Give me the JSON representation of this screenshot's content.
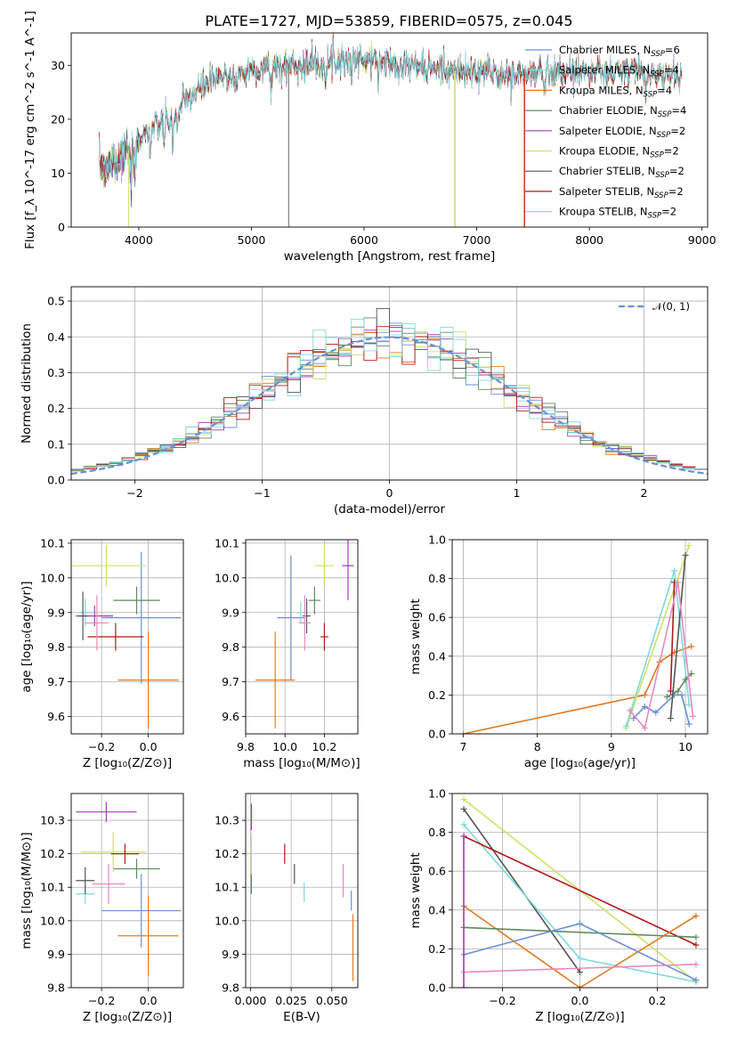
{
  "title": "PLATE=1727, MJD=53859, FIBERID=0575, z=0.045",
  "colors": {
    "chabrier_miles": "#6b8fd6",
    "salpeter_miles": "#7fd8dc",
    "kroupa_miles": "#e07b22",
    "chabrier_elodie": "#5e8a5e",
    "salpeter_elodie": "#a23cb8",
    "kroupa_elodie": "#cfe06a",
    "chabrier_stelib": "#555555",
    "salpeter_stelib": "#b01818",
    "kroupa_stelib": "#7fdde6",
    "gaussian": "#6b8fd6",
    "pink": "#e58ac2"
  },
  "chart_data": [
    {
      "id": "spectrum",
      "type": "line",
      "xlabel": "wavelength [Angstrom, rest frame]",
      "ylabel": "Flux [f_λ 10^-17 erg cm^-2 s^-1 A^-1]",
      "xlim": [
        3400,
        9050
      ],
      "ylim": [
        0,
        36
      ],
      "xticks": [
        4000,
        5000,
        6000,
        7000,
        8000,
        9000
      ],
      "yticks": [
        0,
        10,
        20,
        30
      ],
      "grid": false,
      "legend_position": "top-right",
      "legend": [
        {
          "key": "chabrier_miles",
          "label": "Chabrier MILES, N",
          "sub": "SSP",
          "suffix": "=6"
        },
        {
          "key": "salpeter_miles",
          "label": "Salpeter MILES, N",
          "sub": "SSP",
          "suffix": "=4"
        },
        {
          "key": "kroupa_miles",
          "label": "Kroupa MILES, N",
          "sub": "SSP",
          "suffix": "=4"
        },
        {
          "key": "chabrier_elodie",
          "label": "Chabrier ELODIE, N",
          "sub": "SSP",
          "suffix": "=4"
        },
        {
          "key": "salpeter_elodie",
          "label": "Salpeter ELODIE, N",
          "sub": "SSP",
          "suffix": "=2"
        },
        {
          "key": "kroupa_elodie",
          "label": "Kroupa ELODIE, N",
          "sub": "SSP",
          "suffix": "=2"
        },
        {
          "key": "chabrier_stelib",
          "label": "Chabrier STELIB, N",
          "sub": "SSP",
          "suffix": "=2"
        },
        {
          "key": "salpeter_stelib",
          "label": "Salpeter STELIB, N",
          "sub": "SSP",
          "suffix": "=2"
        },
        {
          "key": "kroupa_stelib",
          "label": "Kroupa STELIB, N",
          "sub": "SSP",
          "suffix": "=2"
        }
      ],
      "continuum": [
        [
          3650,
          11
        ],
        [
          3700,
          11.5
        ],
        [
          3800,
          12
        ],
        [
          3900,
          14
        ],
        [
          3950,
          15
        ],
        [
          4000,
          16.5
        ],
        [
          4100,
          18
        ],
        [
          4200,
          19
        ],
        [
          4300,
          20
        ],
        [
          4400,
          23
        ],
        [
          4500,
          25
        ],
        [
          4600,
          26.5
        ],
        [
          4700,
          27.5
        ],
        [
          4800,
          28
        ],
        [
          4900,
          28.5
        ],
        [
          5000,
          29
        ],
        [
          5100,
          29.5
        ],
        [
          5200,
          29.5
        ],
        [
          5300,
          30
        ],
        [
          5400,
          30
        ],
        [
          5600,
          30.5
        ],
        [
          5800,
          31
        ],
        [
          6000,
          31
        ],
        [
          6200,
          30.5
        ],
        [
          6400,
          30
        ],
        [
          6600,
          29.5
        ],
        [
          6800,
          29
        ],
        [
          7000,
          28.5
        ],
        [
          7100,
          29
        ],
        [
          7300,
          28
        ],
        [
          7500,
          28.5
        ],
        [
          7700,
          29
        ],
        [
          7800,
          28.5
        ],
        [
          7900,
          29
        ],
        [
          8000,
          29
        ],
        [
          8200,
          28.5
        ],
        [
          8400,
          29
        ],
        [
          8600,
          28.5
        ],
        [
          8800,
          28.5
        ]
      ],
      "absorption_dips": [
        [
          3933,
          9
        ],
        [
          3968,
          8
        ],
        [
          4102,
          4
        ],
        [
          4227,
          3
        ],
        [
          4304,
          6
        ],
        [
          4340,
          3
        ],
        [
          4861,
          3
        ],
        [
          5175,
          4
        ],
        [
          5270,
          2
        ],
        [
          5890,
          3
        ],
        [
          6563,
          2
        ],
        [
          7600,
          2.5
        ],
        [
          8500,
          2
        ],
        [
          8542,
          2.5
        ],
        [
          8662,
          2.5
        ]
      ],
      "glitches": [
        {
          "key": "kroupa_elodie",
          "x": 3910,
          "to": 0
        },
        {
          "key": "chabrier_stelib",
          "x": 5330,
          "to": 0
        },
        {
          "key": "kroupa_elodie",
          "x": 6800,
          "to": 0
        },
        {
          "key": "kroupa_elodie",
          "x": 6810,
          "to": 0
        },
        {
          "key": "kroupa_miles",
          "x": 7420,
          "to": 0
        },
        {
          "key": "salpeter_stelib",
          "x": 7425,
          "to": 0
        }
      ]
    },
    {
      "id": "residuals",
      "type": "line",
      "xlabel": "(data-model)/error",
      "ylabel": "Normed distribution",
      "xlim": [
        -2.5,
        2.5
      ],
      "ylim": [
        0,
        0.54
      ],
      "xticks": [
        -2,
        -1,
        0,
        1,
        2
      ],
      "yticks": [
        0.0,
        0.1,
        0.2,
        0.3,
        0.4,
        0.5
      ],
      "grid": true,
      "legend_position": "top-right",
      "legend": [
        {
          "key": "gaussian",
          "label": "𝒩(0, 1)"
        }
      ],
      "bins": 50,
      "series_keys": [
        "chabrier_miles",
        "salpeter_miles",
        "kroupa_miles",
        "chabrier_elodie",
        "salpeter_elodie",
        "kroupa_elodie",
        "chabrier_stelib",
        "salpeter_stelib",
        "kroupa_stelib"
      ]
    },
    {
      "id": "age_vs_z",
      "type": "scatter",
      "xlabel": "Z [log₁₀(Z/Z⊙)]",
      "ylabel": "age  [log₁₀(age/yr)]",
      "xlim": [
        -0.33,
        0.15
      ],
      "ylim": [
        9.55,
        10.11
      ],
      "xticks": [
        -0.2,
        0.0
      ],
      "yticks": [
        9.6,
        9.7,
        9.8,
        9.9,
        10.0,
        10.1
      ],
      "grid": true,
      "points": [
        {
          "key": "chabrier_miles",
          "x": -0.03,
          "y": 9.885,
          "xerr": 0.17,
          "yerr": 0.19
        },
        {
          "key": "salpeter_miles",
          "x": -0.27,
          "y": 9.9,
          "xerr": 0.03,
          "yerr": 0.04
        },
        {
          "key": "kroupa_miles",
          "x": 0.0,
          "y": 9.705,
          "xerr": 0.13,
          "yerr": 0.14
        },
        {
          "key": "chabrier_elodie",
          "x": -0.05,
          "y": 9.935,
          "xerr": 0.1,
          "yerr": 0.04
        },
        {
          "key": "salpeter_elodie",
          "x": -0.23,
          "y": 9.89,
          "xerr": 0.08,
          "yerr": 0.03
        },
        {
          "key": "kroupa_elodie",
          "x": -0.18,
          "y": 10.035,
          "xerr": 0.17,
          "yerr": 0.06
        },
        {
          "key": "chabrier_stelib",
          "x": -0.28,
          "y": 9.89,
          "xerr": 0.02,
          "yerr": 0.07
        },
        {
          "key": "salpeter_stelib",
          "x": -0.14,
          "y": 9.83,
          "xerr": 0.12,
          "yerr": 0.04
        },
        {
          "key": "pink",
          "x": -0.22,
          "y": 9.87,
          "xerr": 0.05,
          "yerr": 0.08
        }
      ]
    },
    {
      "id": "age_vs_mass",
      "type": "scatter",
      "xlabel": "mass [log₁₀(M/M⊙)]",
      "ylabel": "",
      "xlim": [
        9.8,
        10.37
      ],
      "ylim": [
        9.55,
        10.11
      ],
      "xticks": [
        9.8,
        10.0,
        10.2
      ],
      "yticks": [
        9.6,
        9.7,
        9.8,
        9.9,
        10.0,
        10.1
      ],
      "grid": true,
      "points": [
        {
          "key": "chabrier_miles",
          "x": 10.03,
          "y": 9.885,
          "xerr": 0.07,
          "yerr": 0.18
        },
        {
          "key": "salpeter_miles",
          "x": 10.08,
          "y": 9.9,
          "xerr": 0.02,
          "yerr": 0.03
        },
        {
          "key": "kroupa_miles",
          "x": 9.95,
          "y": 9.705,
          "xerr": 0.1,
          "yerr": 0.14
        },
        {
          "key": "chabrier_elodie",
          "x": 10.15,
          "y": 9.935,
          "xerr": 0.03,
          "yerr": 0.04
        },
        {
          "key": "salpeter_elodie",
          "x": 10.32,
          "y": 10.035,
          "xerr": 0.03,
          "yerr": 0.1
        },
        {
          "key": "kroupa_elodie",
          "x": 10.2,
          "y": 10.035,
          "xerr": 0.05,
          "yerr": 0.06
        },
        {
          "key": "chabrier_stelib",
          "x": 10.11,
          "y": 9.89,
          "xerr": 0.02,
          "yerr": 0.05
        },
        {
          "key": "salpeter_stelib",
          "x": 10.2,
          "y": 9.83,
          "xerr": 0.02,
          "yerr": 0.04
        },
        {
          "key": "pink",
          "x": 10.1,
          "y": 9.87,
          "xerr": 0.03,
          "yerr": 0.08
        }
      ]
    },
    {
      "id": "weight_vs_age",
      "type": "line",
      "xlabel": "age  [log₁₀(age/yr)]",
      "ylabel": "mass weight",
      "xlim": [
        6.85,
        10.3
      ],
      "ylim": [
        0,
        1.0
      ],
      "xticks": [
        7,
        8,
        9,
        10
      ],
      "yticks": [
        0.0,
        0.2,
        0.4,
        0.6,
        0.8,
        1.0
      ],
      "grid": true,
      "series": [
        {
          "key": "kroupa_miles",
          "x": [
            7.0,
            9.45,
            9.65,
            9.85,
            10.08
          ],
          "y": [
            0.0,
            0.2,
            0.37,
            0.42,
            0.45
          ]
        },
        {
          "key": "chabrier_miles",
          "x": [
            9.3,
            9.45,
            9.6,
            9.85,
            9.95,
            10.05
          ],
          "y": [
            0.08,
            0.14,
            0.11,
            0.2,
            0.2,
            0.05
          ]
        },
        {
          "key": "kroupa_elodie",
          "x": [
            9.2,
            10.05
          ],
          "y": [
            0.03,
            0.97
          ]
        },
        {
          "key": "salpeter_miles",
          "x": [
            9.2,
            9.85,
            10.05
          ],
          "y": [
            0.04,
            0.84,
            0.15
          ]
        },
        {
          "key": "chabrier_elodie",
          "x": [
            9.75,
            9.9,
            10.0,
            10.08
          ],
          "y": [
            0.19,
            0.22,
            0.28,
            0.31
          ]
        },
        {
          "key": "chabrier_stelib",
          "x": [
            9.8,
            10.0
          ],
          "y": [
            0.08,
            0.92
          ]
        },
        {
          "key": "salpeter_stelib",
          "x": [
            9.8,
            9.85
          ],
          "y": [
            0.22,
            0.78
          ]
        },
        {
          "key": "pink",
          "x": [
            9.25,
            9.45,
            9.9,
            10.1
          ],
          "y": [
            0.12,
            0.03,
            0.78,
            0.09
          ]
        }
      ]
    },
    {
      "id": "mass_vs_z",
      "type": "scatter",
      "xlabel": "Z [log₁₀(Z/Z⊙)]",
      "ylabel": "mass [log₁₀(M/M⊙)]",
      "xlim": [
        -0.33,
        0.15
      ],
      "ylim": [
        9.8,
        10.38
      ],
      "xticks": [
        -0.2,
        0.0
      ],
      "yticks": [
        9.8,
        9.9,
        10.0,
        10.1,
        10.2,
        10.3
      ],
      "grid": true,
      "points": [
        {
          "key": "chabrier_miles",
          "x": -0.03,
          "y": 10.03,
          "xerr": 0.17,
          "yerr": 0.11
        },
        {
          "key": "salpeter_miles",
          "x": -0.27,
          "y": 10.08,
          "xerr": 0.04,
          "yerr": 0.03
        },
        {
          "key": "kroupa_miles",
          "x": 0.0,
          "y": 9.955,
          "xerr": 0.13,
          "yerr": 0.12
        },
        {
          "key": "chabrier_elodie",
          "x": -0.05,
          "y": 10.155,
          "xerr": 0.1,
          "yerr": 0.03
        },
        {
          "key": "salpeter_elodie",
          "x": -0.18,
          "y": 10.325,
          "xerr": 0.13,
          "yerr": 0.03
        },
        {
          "key": "kroupa_elodie",
          "x": -0.15,
          "y": 10.205,
          "xerr": 0.14,
          "yerr": 0.06
        },
        {
          "key": "chabrier_stelib",
          "x": -0.27,
          "y": 10.12,
          "xerr": 0.04,
          "yerr": 0.04
        },
        {
          "key": "salpeter_stelib",
          "x": -0.1,
          "y": 10.2,
          "xerr": 0.06,
          "yerr": 0.03
        },
        {
          "key": "pink",
          "x": -0.17,
          "y": 10.11,
          "xerr": 0.07,
          "yerr": 0.06
        }
      ]
    },
    {
      "id": "mass_vs_ebv",
      "type": "scatter",
      "xlabel": "E(B-V)",
      "ylabel": "",
      "xlim": [
        -0.003,
        0.066
      ],
      "ylim": [
        9.8,
        10.38
      ],
      "xticks": [
        0.0,
        0.025,
        0.05
      ],
      "xtick_labels": [
        "0.000",
        "0.025",
        "0.050"
      ],
      "yticks": [
        9.8,
        9.9,
        10.0,
        10.1,
        10.2,
        10.3
      ],
      "grid": true,
      "points": [
        {
          "key": "salpeter_elodie",
          "x": 0.0005,
          "y": 10.31,
          "xerr": 0.0,
          "yerr": 0.04
        },
        {
          "key": "kroupa_elodie",
          "x": 0.0005,
          "y": 10.2,
          "xerr": 0.0,
          "yerr": 0.06
        },
        {
          "key": "chabrier_elodie",
          "x": 0.0005,
          "y": 10.11,
          "xerr": 0.0,
          "yerr": 0.03
        },
        {
          "key": "salpeter_stelib",
          "x": 0.021,
          "y": 10.2,
          "xerr": 0.0,
          "yerr": 0.03
        },
        {
          "key": "chabrier_stelib",
          "x": 0.027,
          "y": 10.14,
          "xerr": 0.0,
          "yerr": 0.03
        },
        {
          "key": "salpeter_miles",
          "x": 0.033,
          "y": 10.085,
          "xerr": 0.0,
          "yerr": 0.03
        },
        {
          "key": "pink",
          "x": 0.057,
          "y": 10.12,
          "xerr": 0.0,
          "yerr": 0.05
        },
        {
          "key": "chabrier_miles",
          "x": 0.062,
          "y": 10.06,
          "xerr": 0.0,
          "yerr": 0.03
        },
        {
          "key": "kroupa_miles",
          "x": 0.063,
          "y": 9.92,
          "xerr": 0.0,
          "yerr": 0.1
        }
      ]
    },
    {
      "id": "weight_vs_z",
      "type": "line",
      "xlabel": "Z [log₁₀(Z/Z⊙)]",
      "ylabel": "mass weight",
      "xlim": [
        -0.33,
        0.33
      ],
      "ylim": [
        0,
        1.0
      ],
      "xticks": [
        -0.2,
        0.0,
        0.2
      ],
      "yticks": [
        0.0,
        0.2,
        0.4,
        0.6,
        0.8,
        1.0
      ],
      "grid": true,
      "series": [
        {
          "key": "kroupa_elodie",
          "x": [
            -0.3,
            0.3
          ],
          "y": [
            0.97,
            0.03
          ]
        },
        {
          "key": "chabrier_stelib",
          "x": [
            -0.3,
            0.0
          ],
          "y": [
            0.92,
            0.08
          ]
        },
        {
          "key": "salpeter_miles",
          "x": [
            -0.3,
            0.0,
            0.3
          ],
          "y": [
            0.84,
            0.15,
            0.03
          ]
        },
        {
          "key": "salpeter_stelib",
          "x": [
            -0.3,
            0.3
          ],
          "y": [
            0.78,
            0.22
          ]
        },
        {
          "key": "kroupa_miles",
          "x": [
            -0.3,
            0.0,
            0.3
          ],
          "y": [
            0.42,
            0.0,
            0.37
          ]
        },
        {
          "key": "chabrier_elodie",
          "x": [
            -0.3,
            0.3
          ],
          "y": [
            0.31,
            0.26
          ]
        },
        {
          "key": "chabrier_miles",
          "x": [
            -0.3,
            0.0,
            0.3
          ],
          "y": [
            0.17,
            0.33,
            0.04
          ]
        },
        {
          "key": "pink",
          "x": [
            -0.3,
            0.3
          ],
          "y": [
            0.08,
            0.12
          ]
        },
        {
          "key": "salpeter_elodie",
          "x": [
            -0.3,
            -0.3
          ],
          "y": [
            0.0,
            0.78
          ]
        }
      ]
    }
  ]
}
